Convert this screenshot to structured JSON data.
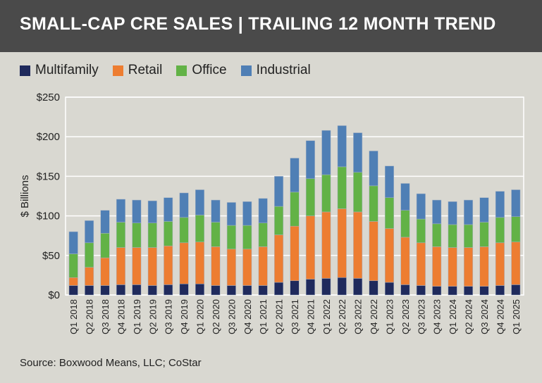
{
  "title": "SMALL-CAP CRE SALES | TRAILING 12 MONTH TREND",
  "source": "Source: Boxwood Means, LLC; CoStar",
  "colors": {
    "title_bar": "#4a4a4a",
    "background": "#d9d8d1",
    "Multifamily": "#1f2a5c",
    "Retail": "#ed7d31",
    "Office": "#62b246",
    "Industrial": "#4f7fb5"
  },
  "chart_data": {
    "type": "bar",
    "stacked": true,
    "title": "SMALL-CAP CRE SALES | TRAILING 12 MONTH TREND",
    "xlabel": "",
    "ylabel": "$ Billions",
    "ylim": [
      0,
      250
    ],
    "yticks": [
      0,
      50,
      100,
      150,
      200,
      250
    ],
    "ytick_labels": [
      "$0",
      "$50",
      "$100",
      "$150",
      "$200",
      "$250"
    ],
    "grid": true,
    "legend_position": "top-left",
    "categories": [
      "Q1 2018",
      "Q2 2018",
      "Q3 2018",
      "Q4 2018",
      "Q1 2019",
      "Q2 2019",
      "Q3 2019",
      "Q4 2019",
      "Q1 2020",
      "Q2 2020",
      "Q3 2020",
      "Q4 2020",
      "Q1 2021",
      "Q2 2021",
      "Q3 2021",
      "Q4 2021",
      "Q1 2022",
      "Q2 2022",
      "Q3 2022",
      "Q4 2022",
      "Q1 2023",
      "Q2 2023",
      "Q3 2023",
      "Q4 2023",
      "Q1 2024",
      "Q2 2024",
      "Q3 2024",
      "Q4 2024",
      "Q1 2025"
    ],
    "series": [
      {
        "name": "Multifamily",
        "values": [
          12,
          12,
          12,
          13,
          13,
          12,
          13,
          14,
          14,
          12,
          12,
          12,
          12,
          16,
          18,
          20,
          21,
          22,
          21,
          18,
          16,
          13,
          12,
          11,
          11,
          11,
          11,
          12,
          13
        ]
      },
      {
        "name": "Retail",
        "values": [
          10,
          23,
          35,
          47,
          47,
          48,
          49,
          52,
          53,
          49,
          46,
          46,
          49,
          60,
          69,
          80,
          84,
          87,
          84,
          75,
          68,
          60,
          54,
          50,
          49,
          49,
          50,
          54,
          54
        ]
      },
      {
        "name": "Office",
        "values": [
          30,
          31,
          31,
          32,
          31,
          31,
          31,
          32,
          34,
          31,
          30,
          30,
          30,
          36,
          43,
          47,
          47,
          53,
          50,
          45,
          39,
          34,
          30,
          29,
          29,
          29,
          31,
          32,
          32
        ]
      },
      {
        "name": "Industrial",
        "values": [
          28,
          28,
          29,
          29,
          29,
          28,
          30,
          31,
          32,
          28,
          29,
          30,
          31,
          38,
          43,
          48,
          56,
          52,
          50,
          44,
          40,
          34,
          32,
          30,
          29,
          31,
          31,
          33,
          34
        ]
      }
    ]
  }
}
